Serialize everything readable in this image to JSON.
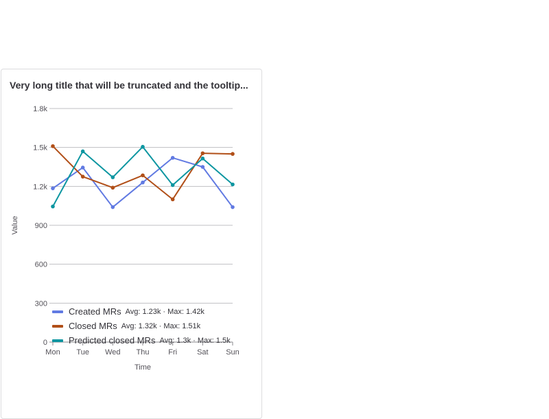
{
  "panel": {
    "title": "Very long title that will be truncated and the tooltip..."
  },
  "chart_data": {
    "type": "line",
    "title": "Very long title that will be truncated and the tooltip...",
    "xlabel": "Time",
    "ylabel": "Value",
    "categories": [
      "Mon",
      "Tue",
      "Wed",
      "Thu",
      "Fri",
      "Sat",
      "Sun"
    ],
    "ylim": [
      0,
      1800
    ],
    "yticks": [
      0,
      300,
      600,
      900,
      1200,
      1500,
      1800
    ],
    "ytick_labels": [
      "0",
      "300",
      "600",
      "900",
      "1.2k",
      "1.5k",
      "1.8k"
    ],
    "grid": true,
    "legend_position": "bottom",
    "series": [
      {
        "name": "Created MRs",
        "color": "#617ae2",
        "values": [
          1185,
          1345,
          1040,
          1230,
          1420,
          1350,
          1040
        ],
        "stats": "Avg: 1.23k · Max: 1.42k"
      },
      {
        "name": "Closed MRs",
        "color": "#b14f18",
        "values": [
          1510,
          1275,
          1190,
          1285,
          1100,
          1455,
          1450
        ],
        "stats": "Avg: 1.32k · Max: 1.51k"
      },
      {
        "name": "Predicted closed MRs",
        "color": "#0d96a1",
        "values": [
          1045,
          1470,
          1270,
          1505,
          1210,
          1415,
          1215
        ],
        "stats": "Avg: 1.3k · Max: 1.5k"
      }
    ]
  }
}
